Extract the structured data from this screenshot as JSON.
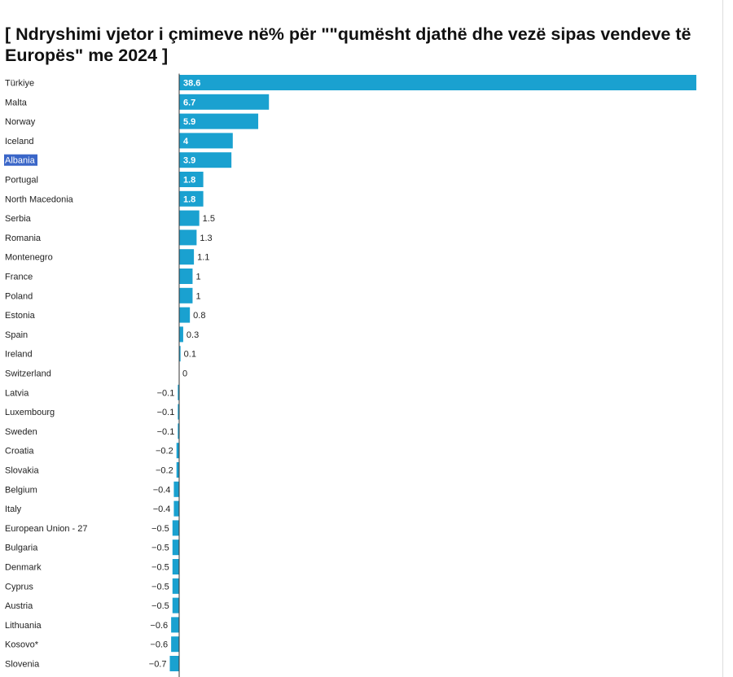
{
  "title": "[ Ndryshimi vjetor i çmimeve në% për \"\"qumësht  djathë dhe vezë sipas vendeve të Europës\" me 2024 ]",
  "colors": {
    "bar": "#1aa1d0",
    "bar_label_inside": "#ffffff",
    "bar_label_outside": "#222222",
    "category_label": "#222222",
    "highlight_bg": "#3a66c8",
    "highlight_text": "#ffffff",
    "zero_line": "#333333"
  },
  "chart_data": {
    "type": "bar",
    "orientation": "horizontal",
    "value_label_format": "one decimal, unicode minus for negatives",
    "highlighted_category": "Albania",
    "categories": [
      "Türkiye",
      "Malta",
      "Norway",
      "Iceland",
      "Albania",
      "Portugal",
      "North Macedonia",
      "Serbia",
      "Romania",
      "Montenegro",
      "France",
      "Poland",
      "Estonia",
      "Spain",
      "Ireland",
      "Switzerland",
      "Latvia",
      "Luxembourg",
      "Sweden",
      "Croatia",
      "Slovakia",
      "Belgium",
      "Italy",
      "European Union - 27",
      "Bulgaria",
      "Denmark",
      "Cyprus",
      "Austria",
      "Lithuania",
      "Kosovo*",
      "Slovenia"
    ],
    "values": [
      38.6,
      6.7,
      5.9,
      4,
      3.9,
      1.8,
      1.8,
      1.5,
      1.3,
      1.1,
      1,
      1,
      0.8,
      0.3,
      0.1,
      0,
      -0.1,
      -0.1,
      -0.1,
      -0.2,
      -0.2,
      -0.4,
      -0.4,
      -0.5,
      -0.5,
      -0.5,
      -0.5,
      -0.5,
      -0.6,
      -0.6,
      -0.7
    ],
    "value_labels": [
      "38.6",
      "6.7",
      "5.9",
      "4",
      "3.9",
      "1.8",
      "1.8",
      "1.5",
      "1.3",
      "1.1",
      "1",
      "1",
      "0.8",
      "0.3",
      "0.1",
      "0",
      "−0.1",
      "−0.1",
      "−0.1",
      "−0.2",
      "−0.2",
      "−0.4",
      "−0.4",
      "−0.5",
      "−0.5",
      "−0.5",
      "−0.5",
      "−0.5",
      "−0.6",
      "−0.6",
      "−0.7"
    ],
    "xlim": [
      -1.3,
      38.6
    ],
    "legend": "none",
    "grid": false
  }
}
